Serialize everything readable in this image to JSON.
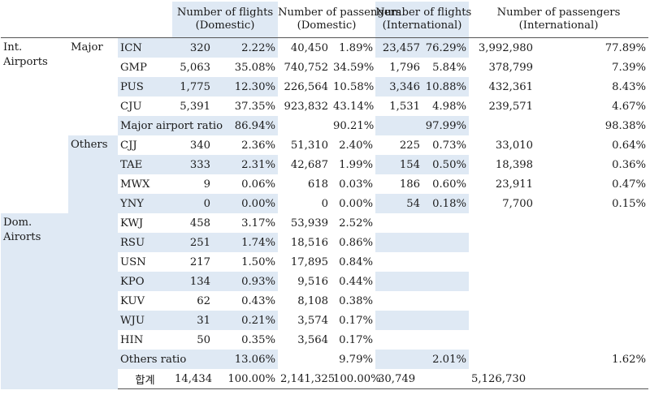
{
  "headers": [
    {
      "line1": "Number of flights",
      "line2": "(Domestic)"
    },
    {
      "line1": "Number of passengers",
      "line2": "(Domestic)"
    },
    {
      "line1": "Number of flights",
      "line2": "(International)"
    },
    {
      "line1": "Number of passengers",
      "line2": "(International)"
    }
  ],
  "groups": {
    "int_airports": {
      "line1": "Int.",
      "line2": "Airports"
    },
    "major": "Major",
    "others": "Others",
    "dom_airports": {
      "line1": "Dom.",
      "line2": "Airorts"
    }
  },
  "rows": {
    "icn": {
      "code": "ICN",
      "df": "320",
      "dfp": "2.22%",
      "dp": "40,450",
      "dpp": "1.89%",
      "if": "23,457",
      "ifp": "76.29%",
      "ip": "3,992,980",
      "ipp": "77.89%"
    },
    "gmp": {
      "code": "GMP",
      "df": "5,063",
      "dfp": "35.08%",
      "dp": "740,752",
      "dpp": "34.59%",
      "if": "1,796",
      "ifp": "5.84%",
      "ip": "378,799",
      "ipp": "7.39%"
    },
    "pus": {
      "code": "PUS",
      "df": "1,775",
      "dfp": "12.30%",
      "dp": "226,564",
      "dpp": "10.58%",
      "if": "3,346",
      "ifp": "10.88%",
      "ip": "432,361",
      "ipp": "8.43%"
    },
    "cju": {
      "code": "CJU",
      "df": "5,391",
      "dfp": "37.35%",
      "dp": "923,832",
      "dpp": "43.14%",
      "if": "1,531",
      "ifp": "4.98%",
      "ip": "239,571",
      "ipp": "4.67%"
    },
    "cjj": {
      "code": "CJJ",
      "df": "340",
      "dfp": "2.36%",
      "dp": "51,310",
      "dpp": "2.40%",
      "if": "225",
      "ifp": "0.73%",
      "ip": "33,010",
      "ipp": "0.64%"
    },
    "tae": {
      "code": "TAE",
      "df": "333",
      "dfp": "2.31%",
      "dp": "42,687",
      "dpp": "1.99%",
      "if": "154",
      "ifp": "0.50%",
      "ip": "18,398",
      "ipp": "0.36%"
    },
    "mwx": {
      "code": "MWX",
      "df": "9",
      "dfp": "0.06%",
      "dp": "618",
      "dpp": "0.03%",
      "if": "186",
      "ifp": "0.60%",
      "ip": "23,911",
      "ipp": "0.47%"
    },
    "yny": {
      "code": "YNY",
      "df": "0",
      "dfp": "0.00%",
      "dp": "0",
      "dpp": "0.00%",
      "if": "54",
      "ifp": "0.18%",
      "ip": "7,700",
      "ipp": "0.15%"
    },
    "kwj": {
      "code": "KWJ",
      "df": "458",
      "dfp": "3.17%",
      "dp": "53,939",
      "dpp": "2.52%"
    },
    "rsu": {
      "code": "RSU",
      "df": "251",
      "dfp": "1.74%",
      "dp": "18,516",
      "dpp": "0.86%"
    },
    "usn": {
      "code": "USN",
      "df": "217",
      "dfp": "1.50%",
      "dp": "17,895",
      "dpp": "0.84%"
    },
    "kpo": {
      "code": "KPO",
      "df": "134",
      "dfp": "0.93%",
      "dp": "9,516",
      "dpp": "0.44%"
    },
    "kuv": {
      "code": "KUV",
      "df": "62",
      "dfp": "0.43%",
      "dp": "8,108",
      "dpp": "0.38%"
    },
    "wju": {
      "code": "WJU",
      "df": "31",
      "dfp": "0.21%",
      "dp": "3,574",
      "dpp": "0.17%"
    },
    "hin": {
      "code": "HIN",
      "df": "50",
      "dfp": "0.35%",
      "dp": "3,564",
      "dpp": "0.17%"
    }
  },
  "major_ratio": {
    "label": "Major airport ratio",
    "dfp": "86.94%",
    "dpp": "90.21%",
    "ifp": "97.99%",
    "ipp": "98.38%"
  },
  "others_ratio": {
    "label": "Others ratio",
    "dfp": "13.06%",
    "dpp": "9.79%",
    "ifp": "2.01%",
    "ipp": "1.62%"
  },
  "total": {
    "label": "합계",
    "df": "14,434",
    "dfp": "100.00%",
    "dp": "2,141,325",
    "dpp": "100.00%",
    "if": "30,749",
    "ip": "5,126,730"
  }
}
